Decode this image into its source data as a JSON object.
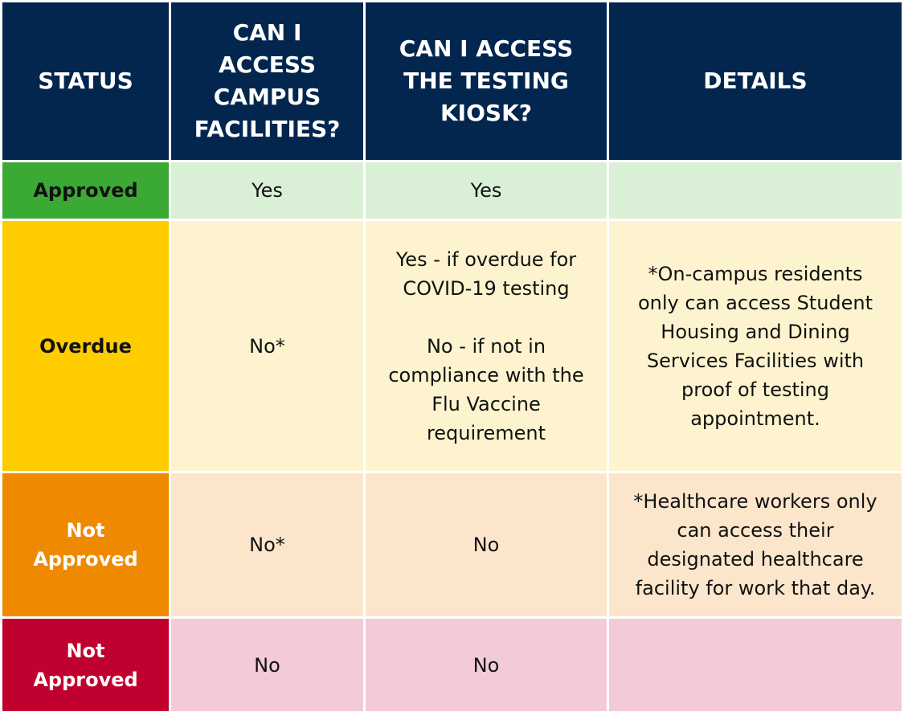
{
  "table": {
    "header": [
      "STATUS",
      "CAN I ACCESS CAMPUS FACILITIES?",
      "CAN I ACCESS THE TESTING KIOSK?",
      "DETAILS"
    ],
    "rows": [
      [
        "Approved",
        "Yes",
        "Yes"
      ],
      [
        "Overdue",
        "No*",
        [
          "Yes - if overdue for COVID-19 testing",
          "No - if not in compliance with the Flu Vaccine requirement"
        ],
        "*On-campus residents only can access Student Housing and Dining Services Facilities with proof of testing appointment."
      ],
      [
        "Not Approved",
        "No*",
        "No",
        "*Healthcare workers only can access their designated healthcare facility for work that day."
      ],
      [
        "Not Approved",
        "No",
        "No"
      ]
    ]
  }
}
